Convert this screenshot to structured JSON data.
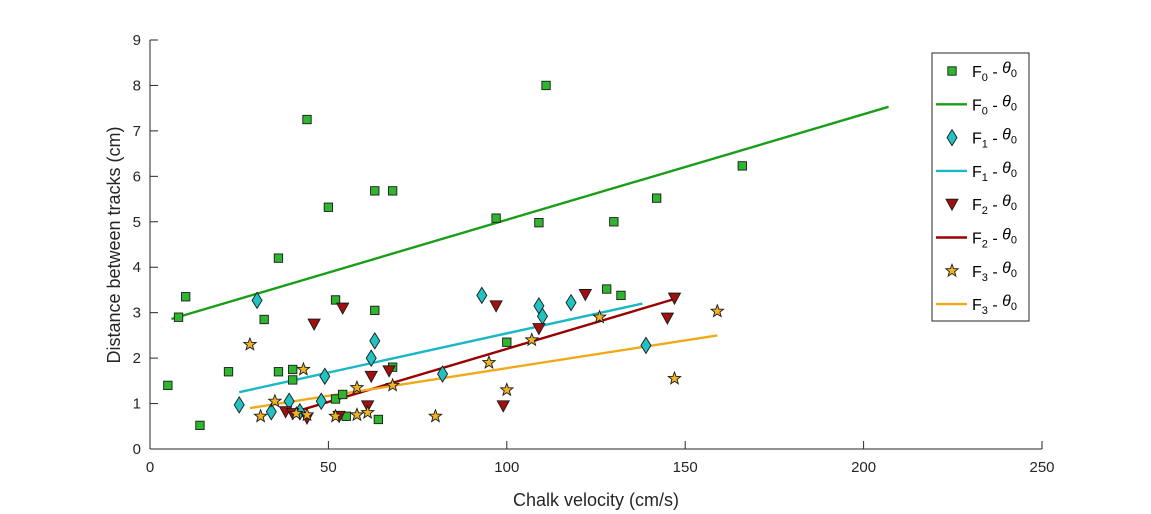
{
  "chart_data": {
    "type": "scatter",
    "title": "",
    "xlabel": "Chalk velocity (cm/s)",
    "ylabel": "Distance between tracks (cm)",
    "xlim": [
      0,
      250
    ],
    "ylim": [
      0,
      9
    ],
    "xticks": [
      "0",
      "50",
      "100",
      "150",
      "200",
      "250"
    ],
    "yticks": [
      "0",
      "1",
      "2",
      "3",
      "4",
      "5",
      "6",
      "7",
      "8",
      "9"
    ],
    "grid": false,
    "legend_position": "top-right outside",
    "series": [
      {
        "key": "F0",
        "legend": {
          "main": "F",
          "sub": "0",
          "rest": " - ",
          "theta": "θ",
          "thetasub": "0"
        },
        "marker": "square",
        "color": "#2fb52f",
        "line_color": "#1a9e1a",
        "points": [
          [
            5,
            1.4
          ],
          [
            8,
            2.9
          ],
          [
            10,
            3.35
          ],
          [
            14,
            0.52
          ],
          [
            22,
            1.7
          ],
          [
            32,
            2.85
          ],
          [
            36,
            4.2
          ],
          [
            36,
            1.7
          ],
          [
            40,
            1.75
          ],
          [
            40,
            1.52
          ],
          [
            44,
            7.25
          ],
          [
            50,
            5.32
          ],
          [
            52,
            3.28
          ],
          [
            52,
            1.1
          ],
          [
            54,
            1.2
          ],
          [
            55,
            0.72
          ],
          [
            63,
            5.68
          ],
          [
            63,
            3.05
          ],
          [
            64,
            0.65
          ],
          [
            68,
            1.8
          ],
          [
            68,
            5.68
          ],
          [
            97,
            5.08
          ],
          [
            100,
            2.35
          ],
          [
            109,
            4.98
          ],
          [
            111,
            8.0
          ],
          [
            128,
            3.52
          ],
          [
            130,
            5.0
          ],
          [
            132,
            3.38
          ],
          [
            142,
            5.52
          ],
          [
            166,
            6.23
          ]
        ],
        "fit": [
          [
            6,
            2.86
          ],
          [
            207,
            7.53
          ]
        ]
      },
      {
        "key": "F1",
        "legend": {
          "main": "F",
          "sub": "1",
          "rest": " - ",
          "theta": "θ",
          "thetasub": "0"
        },
        "marker": "diamond",
        "color": "#22c2c2",
        "line_color": "#1ab8c4",
        "points": [
          [
            25,
            0.97
          ],
          [
            30,
            3.27
          ],
          [
            34,
            0.82
          ],
          [
            39,
            1.05
          ],
          [
            42,
            0.82
          ],
          [
            48,
            1.05
          ],
          [
            49,
            1.6
          ],
          [
            62,
            2.0
          ],
          [
            63,
            2.38
          ],
          [
            82,
            1.65
          ],
          [
            93,
            3.38
          ],
          [
            109,
            3.15
          ],
          [
            110,
            2.92
          ],
          [
            118,
            3.22
          ],
          [
            139,
            2.28
          ]
        ],
        "fit": [
          [
            25,
            1.25
          ],
          [
            138,
            3.2
          ]
        ]
      },
      {
        "key": "F2",
        "legend": {
          "main": "F",
          "sub": "2",
          "rest": " - ",
          "theta": "θ",
          "thetasub": "0"
        },
        "marker": "triangle-down",
        "color": "#a10f0f",
        "line_color": "#990000",
        "points": [
          [
            38,
            0.82
          ],
          [
            40,
            0.78
          ],
          [
            44,
            0.68
          ],
          [
            46,
            2.75
          ],
          [
            53,
            0.72
          ],
          [
            54,
            3.1
          ],
          [
            61,
            0.95
          ],
          [
            62,
            1.6
          ],
          [
            67,
            1.72
          ],
          [
            97,
            3.15
          ],
          [
            99,
            0.95
          ],
          [
            109,
            2.65
          ],
          [
            122,
            3.4
          ],
          [
            145,
            2.88
          ],
          [
            147,
            3.32
          ]
        ],
        "fit": [
          [
            39,
            0.78
          ],
          [
            147,
            3.3
          ]
        ]
      },
      {
        "key": "F3",
        "legend": {
          "main": "F",
          "sub": "3",
          "rest": " - ",
          "theta": "θ",
          "thetasub": "0"
        },
        "marker": "star",
        "color": "#f0b324",
        "line_color": "#efaa18",
        "points": [
          [
            28,
            2.3
          ],
          [
            31,
            0.72
          ],
          [
            35,
            1.05
          ],
          [
            41,
            0.78
          ],
          [
            43,
            1.75
          ],
          [
            44,
            0.75
          ],
          [
            52,
            0.72
          ],
          [
            58,
            1.35
          ],
          [
            58,
            0.75
          ],
          [
            61,
            0.8
          ],
          [
            68,
            1.4
          ],
          [
            80,
            0.72
          ],
          [
            95,
            1.9
          ],
          [
            100,
            1.3
          ],
          [
            107,
            2.4
          ],
          [
            126,
            2.9
          ],
          [
            147,
            1.55
          ],
          [
            159,
            3.03
          ]
        ],
        "fit": [
          [
            28,
            0.9
          ],
          [
            159,
            2.5
          ]
        ]
      }
    ]
  }
}
